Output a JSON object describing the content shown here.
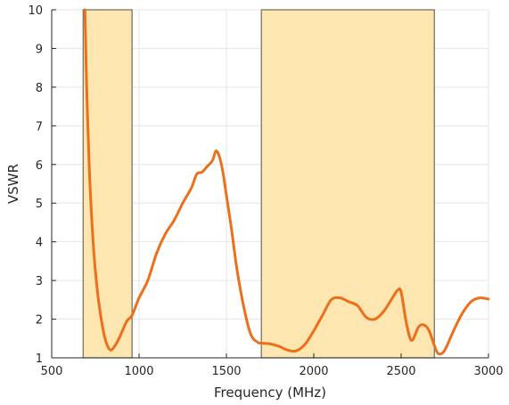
{
  "chart_data": {
    "type": "line",
    "title": "",
    "xlabel": "Frequency (MHz)",
    "ylabel": "VSWR",
    "xlim": [
      500,
      3000
    ],
    "ylim": [
      1,
      10
    ],
    "x_ticks": [
      500,
      1000,
      1500,
      2000,
      2500,
      3000
    ],
    "y_ticks": [
      1,
      2,
      3,
      4,
      5,
      6,
      7,
      8,
      9,
      10
    ],
    "grid": true,
    "colors": {
      "line": "#ec6f1c",
      "band_fill": "#fde6b0",
      "band_edge": "#6b6b5e",
      "grid": "#e6e6e6",
      "axis": "#262626"
    },
    "bands": [
      {
        "x_start": 680,
        "x_end": 960
      },
      {
        "x_start": 1700,
        "x_end": 2690
      }
    ],
    "series": [
      {
        "x": [
          690,
          695,
          700,
          710,
          720,
          740,
          760,
          780,
          800,
          820,
          840,
          860,
          880,
          900,
          930,
          960,
          1000,
          1050,
          1100,
          1150,
          1200,
          1250,
          1300,
          1330,
          1360,
          1390,
          1420,
          1440,
          1460,
          1480,
          1500,
          1530,
          1560,
          1600,
          1640,
          1680,
          1700,
          1750,
          1800,
          1850,
          1900,
          1950,
          2000,
          2050,
          2100,
          2150,
          2200,
          2250,
          2300,
          2350,
          2400,
          2450,
          2480,
          2500,
          2530,
          2560,
          2600,
          2630,
          2660,
          2700,
          2720,
          2750,
          2800,
          2850,
          2900,
          2950,
          3000
        ],
        "y": [
          10,
          9.0,
          8.0,
          6.6,
          5.4,
          3.8,
          2.8,
          2.1,
          1.6,
          1.3,
          1.2,
          1.3,
          1.45,
          1.65,
          1.95,
          2.1,
          2.55,
          3.0,
          3.7,
          4.2,
          4.55,
          5.0,
          5.4,
          5.75,
          5.8,
          5.95,
          6.1,
          6.35,
          6.2,
          5.8,
          5.2,
          4.3,
          3.3,
          2.3,
          1.6,
          1.4,
          1.38,
          1.36,
          1.3,
          1.2,
          1.18,
          1.35,
          1.7,
          2.1,
          2.5,
          2.55,
          2.45,
          2.35,
          2.05,
          2.0,
          2.2,
          2.55,
          2.75,
          2.7,
          1.9,
          1.45,
          1.8,
          1.85,
          1.7,
          1.2,
          1.1,
          1.2,
          1.7,
          2.15,
          2.45,
          2.55,
          2.52
        ]
      }
    ]
  }
}
